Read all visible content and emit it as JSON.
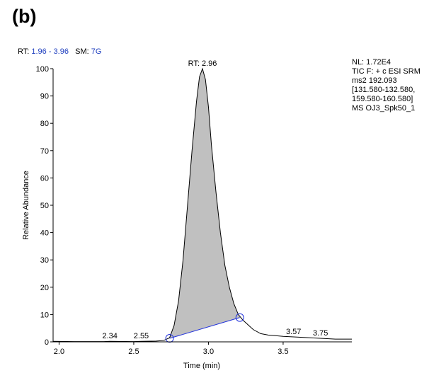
{
  "panel_label": "(b)",
  "header": {
    "rt_label": "RT:",
    "rt_range": "1.96 - 3.96",
    "sm_label": "SM:",
    "sm_value": "7G"
  },
  "info": {
    "lines": [
      "NL: 1.72E4",
      "TIC F: + c ESI SRM",
      "ms2 192.093",
      "[131.580-132.580,",
      "159.580-160.580]",
      "MS OJ3_Spk50_1"
    ]
  },
  "colors": {
    "peak_fill": "#c0c0c0",
    "baseline": "#2233dd",
    "axis": "#000000"
  },
  "chart_data": {
    "type": "area",
    "xlabel": "Time (min)",
    "ylabel": "Relative Abundance",
    "xlim": [
      1.96,
      3.96
    ],
    "ylim": [
      0,
      100
    ],
    "xticks": [
      "2.0",
      "2.5",
      "3.0",
      "3.5"
    ],
    "xtick_values": [
      2.0,
      2.5,
      3.0,
      3.5
    ],
    "yticks": [
      0,
      10,
      20,
      30,
      40,
      50,
      60,
      70,
      80,
      90,
      100
    ],
    "trace": [
      [
        1.96,
        0.2
      ],
      [
        2.1,
        0.1
      ],
      [
        2.3,
        0.1
      ],
      [
        2.34,
        0.2
      ],
      [
        2.5,
        0.1
      ],
      [
        2.55,
        0.2
      ],
      [
        2.65,
        0.3
      ],
      [
        2.7,
        0.5
      ],
      [
        2.74,
        1.5
      ],
      [
        2.77,
        6
      ],
      [
        2.8,
        15
      ],
      [
        2.83,
        30
      ],
      [
        2.86,
        50
      ],
      [
        2.89,
        70
      ],
      [
        2.92,
        88
      ],
      [
        2.94,
        97
      ],
      [
        2.96,
        100
      ],
      [
        2.98,
        96
      ],
      [
        3.0,
        86
      ],
      [
        3.02,
        72
      ],
      [
        3.05,
        55
      ],
      [
        3.08,
        40
      ],
      [
        3.11,
        28
      ],
      [
        3.14,
        20
      ],
      [
        3.17,
        14
      ],
      [
        3.2,
        10
      ],
      [
        3.23,
        8
      ],
      [
        3.27,
        6
      ],
      [
        3.3,
        4.5
      ],
      [
        3.35,
        3
      ],
      [
        3.4,
        2.5
      ],
      [
        3.5,
        2
      ],
      [
        3.57,
        1.8
      ],
      [
        3.65,
        1.6
      ],
      [
        3.75,
        1.3
      ],
      [
        3.85,
        1.0
      ],
      [
        3.96,
        1.0
      ]
    ],
    "integration": {
      "start": [
        2.74,
        1.3
      ],
      "end": [
        3.21,
        8.9
      ]
    },
    "peak_labels": [
      {
        "text": "RT: 2.96",
        "x": 2.96,
        "y": 100
      },
      {
        "text": "2.34",
        "x": 2.34,
        "y": 0.2
      },
      {
        "text": "2.55",
        "x": 2.55,
        "y": 0.2
      },
      {
        "text": "3.57",
        "x": 3.57,
        "y": 1.8
      },
      {
        "text": "3.75",
        "x": 3.75,
        "y": 1.3
      }
    ]
  }
}
